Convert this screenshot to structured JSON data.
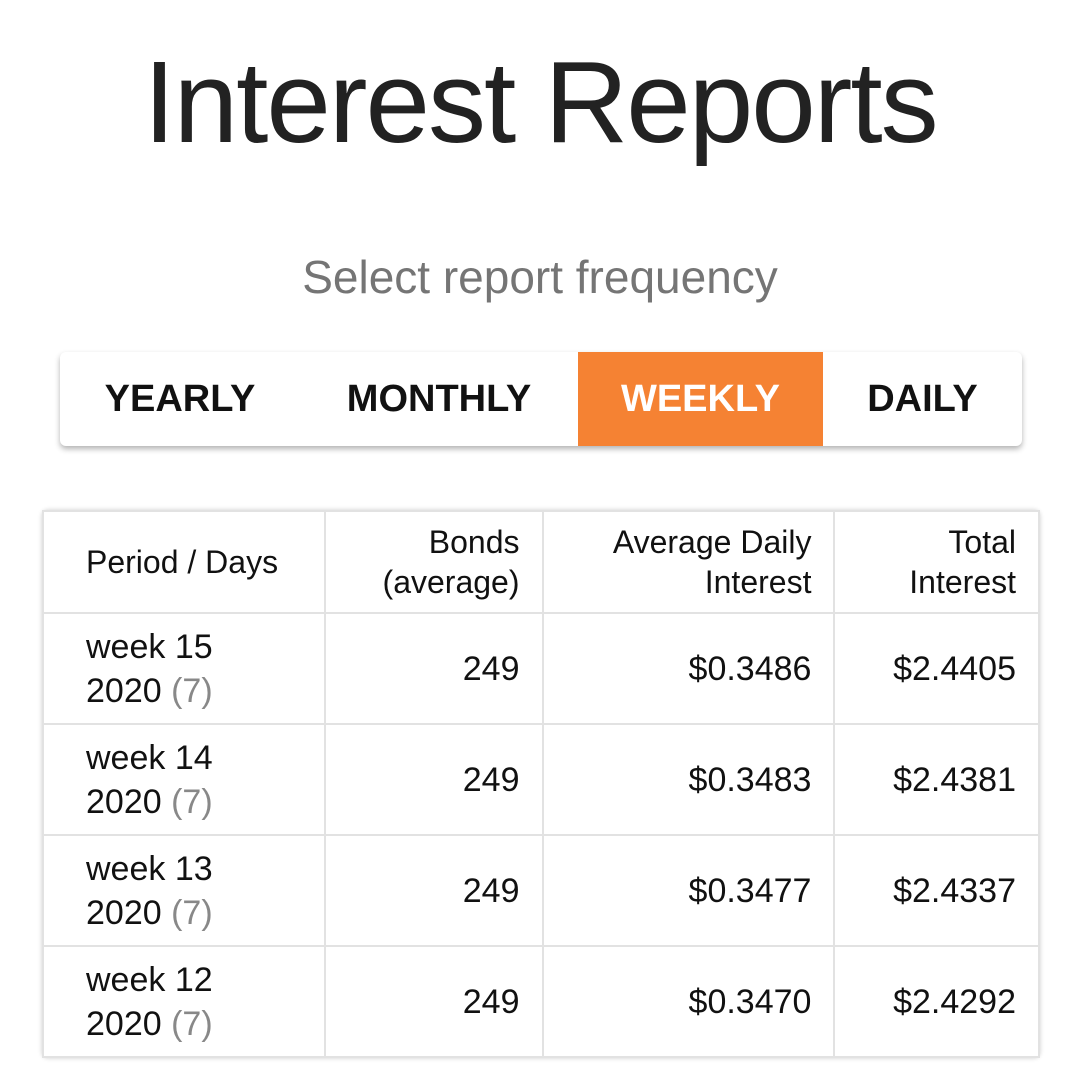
{
  "header": {
    "title": "Interest Reports",
    "subtitle": "Select report frequency"
  },
  "tabs": {
    "items": [
      "YEARLY",
      "MONTHLY",
      "WEEKLY",
      "DAILY"
    ],
    "active_index": 2
  },
  "table": {
    "columns": [
      "Period / Days",
      "Bonds (average)",
      "Average Daily Interest",
      "Total Interest"
    ],
    "rows": [
      {
        "period": "week 15 2020",
        "days": "(7)",
        "bonds": "249",
        "avg_daily": "$0.3486",
        "total": "$2.4405"
      },
      {
        "period": "week 14 2020",
        "days": "(7)",
        "bonds": "249",
        "avg_daily": "$0.3483",
        "total": "$2.4381"
      },
      {
        "period": "week 13 2020",
        "days": "(7)",
        "bonds": "249",
        "avg_daily": "$0.3477",
        "total": "$2.4337"
      },
      {
        "period": "week 12 2020",
        "days": "(7)",
        "bonds": "249",
        "avg_daily": "$0.3470",
        "total": "$2.4292"
      }
    ]
  }
}
